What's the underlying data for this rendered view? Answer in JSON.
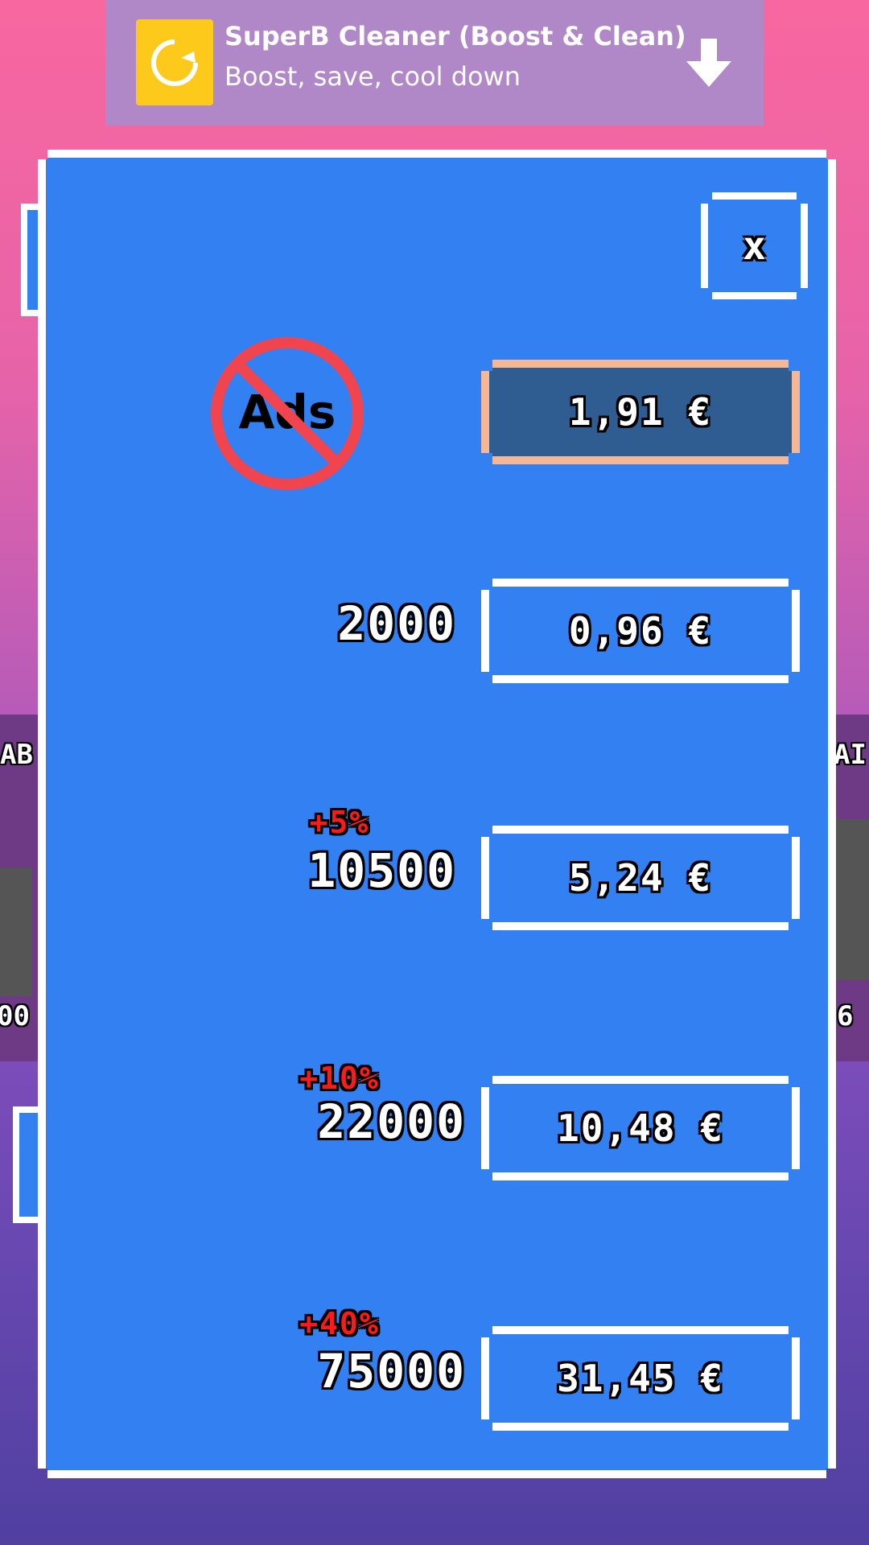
{
  "ad": {
    "title": "SuperB Cleaner (Boost & Clean)",
    "subtitle": "Boost, save, cool down",
    "icon": "cleaner-app-icon",
    "action_icon": "download-arrow-icon",
    "brand_color": "#FDCA1C"
  },
  "background_cards": {
    "left_top": "AB",
    "left_bottom": "00",
    "right_top": "AI",
    "right_bottom": "6"
  },
  "shop": {
    "close_label": "x",
    "no_ads": {
      "icon_text": "Ads",
      "icon": "no-ads-icon",
      "price": "1,91 €"
    },
    "packs": [
      {
        "amount": "2000",
        "bonus": "",
        "price": "0,96 €"
      },
      {
        "amount": "10500",
        "bonus": "+5%",
        "price": "5,24 €"
      },
      {
        "amount": "22000",
        "bonus": "+10%",
        "price": "10,48 €"
      },
      {
        "amount": "75000",
        "bonus": "+40%",
        "price": "31,45 €"
      }
    ],
    "colors": {
      "panel": "#3380F2",
      "no_ads_button": "#2F5D91",
      "no_ads_border": "#F5B794",
      "bonus": "#FF1A1A"
    }
  }
}
